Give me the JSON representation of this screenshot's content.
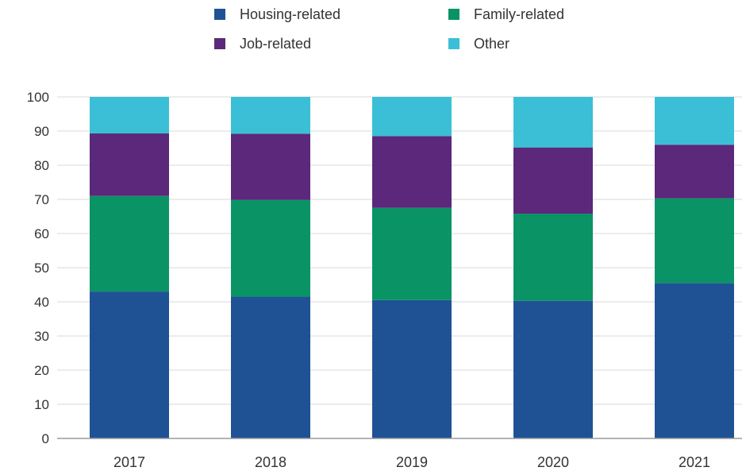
{
  "chart_data": {
    "type": "bar",
    "stacked": true,
    "categories": [
      "2017",
      "2018",
      "2019",
      "2020",
      "2021"
    ],
    "series": [
      {
        "name": "Housing-related",
        "color": "#1f5294",
        "values": [
          43,
          41.5,
          40.5,
          40.3,
          45.5
        ]
      },
      {
        "name": "Family-related",
        "color": "#0a9365",
        "values": [
          28,
          28.3,
          27,
          25.5,
          24.8
        ]
      },
      {
        "name": "Job-related",
        "color": "#5b287b",
        "values": [
          18.3,
          19.4,
          21,
          19.4,
          15.7
        ]
      },
      {
        "name": "Other",
        "color": "#3bbfd6",
        "values": [
          10.7,
          10.8,
          11.5,
          14.8,
          14
        ]
      }
    ],
    "y_ticks": [
      "0",
      "10",
      "20",
      "30",
      "40",
      "50",
      "60",
      "70",
      "80",
      "90",
      "100"
    ],
    "ylim": [
      0,
      100
    ],
    "grid": true,
    "legend_position": "top",
    "axis_color": "#9a9a9a",
    "grid_color": "#d9d9d9"
  }
}
